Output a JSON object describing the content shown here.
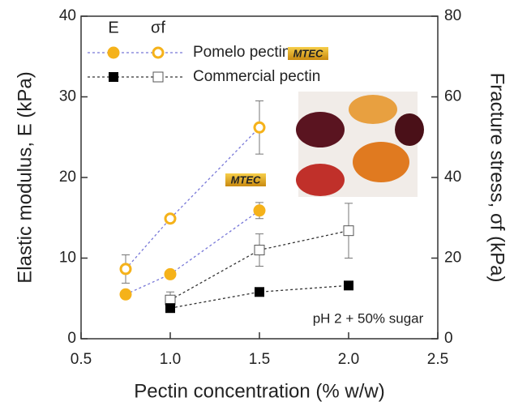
{
  "chart_data": {
    "type": "line",
    "xlabel": "Pectin concentration (% w/w)",
    "ylabel": "Elastic modulus, E (kPa)",
    "y2label": "Fracture stress, σf (kPa)",
    "xlim": [
      0.5,
      2.5
    ],
    "xticks": [
      0.5,
      {
        "value": 1.0,
        "label": "1.0"
      },
      1.5,
      {
        "value": 2.0,
        "label": "2.0"
      },
      2.5
    ],
    "ylim": [
      0,
      40
    ],
    "yticks": [
      0,
      10,
      20,
      30,
      40
    ],
    "y2lim": [
      0,
      80
    ],
    "y2ticks": [
      0,
      20,
      40,
      60,
      80
    ],
    "legend_columns": [
      "E",
      "σf"
    ],
    "groups": [
      {
        "name": "Pomelo pectin",
        "color": "#f5b21a",
        "line_color": "#7878d8",
        "marker": "circle",
        "x": [
          0.75,
          1.0,
          1.5
        ],
        "E": {
          "values": [
            5.5,
            8.0,
            15.9
          ],
          "errors": [
            0.3,
            0.3,
            1.0
          ]
        },
        "sigma": {
          "values": [
            17.3,
            29.8,
            52.4
          ],
          "errors": [
            3.5,
            1.0,
            6.6
          ],
          "axis": "y2"
        }
      },
      {
        "name": "Commercial pectin",
        "color": "#000000",
        "line_color": "#333333",
        "marker": "square",
        "x": [
          1.0,
          1.5,
          2.0
        ],
        "E": {
          "values": [
            3.8,
            5.8,
            6.6
          ],
          "errors": [
            0.3,
            0.3,
            0.3
          ]
        },
        "sigma": {
          "values": [
            9.6,
            22.0,
            26.8
          ],
          "errors": [
            2.0,
            4.0,
            6.8
          ],
          "axis": "y2"
        }
      }
    ],
    "legend_logo": "MTEC",
    "plot_logo": "MTEC",
    "annotation": "pH 2 + 50% sugar"
  }
}
